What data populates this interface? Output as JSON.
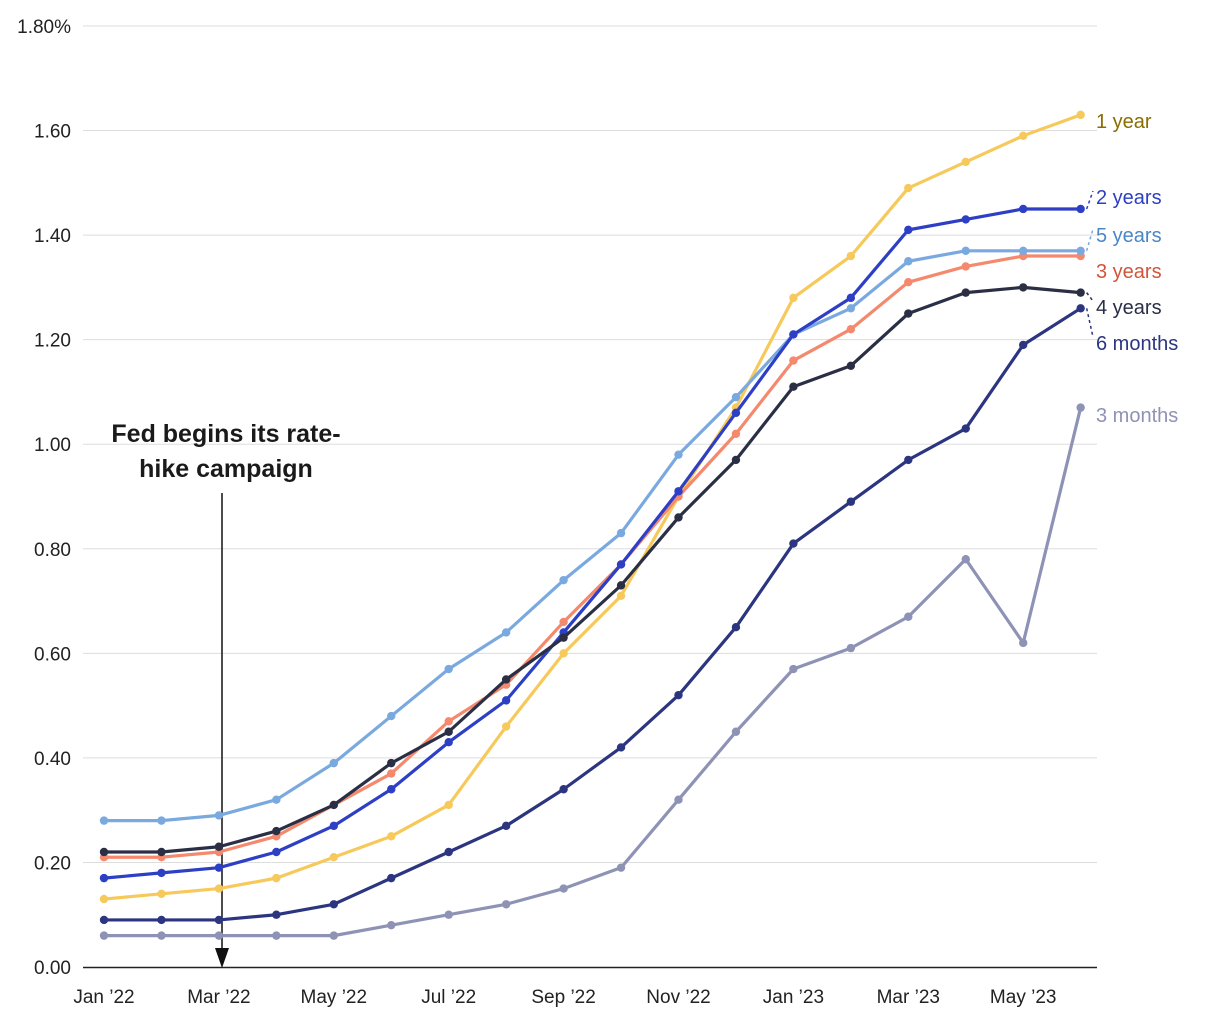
{
  "chart_data": {
    "type": "line",
    "title": "",
    "xlabel": "",
    "ylabel": "",
    "ylim": [
      0,
      1.8
    ],
    "y_ticks": [
      "0.00",
      "0.20",
      "0.40",
      "0.60",
      "0.80",
      "1.00",
      "1.20",
      "1.40",
      "1.60",
      "1.80%"
    ],
    "x_tick_labels": [
      "Jan ’22",
      "Mar ’22",
      "May ’22",
      "Jul ’22",
      "Sep ’22",
      "Nov ’22",
      "Jan ’23",
      "Mar ’23",
      "May ’23"
    ],
    "x": [
      "2022-01",
      "2022-02",
      "2022-03",
      "2022-04",
      "2022-05",
      "2022-06",
      "2022-07",
      "2022-08",
      "2022-09",
      "2022-10",
      "2022-11",
      "2022-12",
      "2023-01",
      "2023-02",
      "2023-03",
      "2023-04",
      "2023-05",
      "2023-06"
    ],
    "grid": true,
    "legend": "direct labels at right end of lines",
    "series": [
      {
        "name": "3 months",
        "color": "#8e92b5",
        "values": [
          0.06,
          0.06,
          0.06,
          0.06,
          0.06,
          0.08,
          0.1,
          0.12,
          0.15,
          0.19,
          0.32,
          0.45,
          0.57,
          0.61,
          0.67,
          0.78,
          0.62,
          1.07
        ]
      },
      {
        "name": "6 months",
        "color": "#2c3580",
        "values": [
          0.09,
          0.09,
          0.09,
          0.1,
          0.12,
          0.17,
          0.22,
          0.27,
          0.34,
          0.42,
          0.52,
          0.65,
          0.81,
          0.89,
          0.97,
          1.03,
          1.19,
          1.26
        ]
      },
      {
        "name": "1 year",
        "color": "#f7c95b",
        "label_color": "#8a6d00",
        "values": [
          0.13,
          0.14,
          0.15,
          0.17,
          0.21,
          0.25,
          0.31,
          0.46,
          0.6,
          0.71,
          0.9,
          1.07,
          1.28,
          1.36,
          1.49,
          1.54,
          1.59,
          1.63
        ]
      },
      {
        "name": "3 years",
        "color": "#f4896d",
        "label_color": "#d2543a",
        "values": [
          0.21,
          0.21,
          0.22,
          0.25,
          0.31,
          0.37,
          0.47,
          0.54,
          0.66,
          0.77,
          0.9,
          1.02,
          1.16,
          1.22,
          1.31,
          1.34,
          1.36,
          1.36
        ]
      },
      {
        "name": "5 years",
        "color": "#7aa9e0",
        "label_color": "#4a86c8",
        "values": [
          0.28,
          0.28,
          0.29,
          0.32,
          0.39,
          0.48,
          0.57,
          0.64,
          0.74,
          0.83,
          0.98,
          1.09,
          1.21,
          1.26,
          1.35,
          1.37,
          1.37,
          1.37
        ]
      },
      {
        "name": "2 years",
        "color": "#2d3fc4",
        "values": [
          0.17,
          0.18,
          0.19,
          0.22,
          0.27,
          0.34,
          0.43,
          0.51,
          0.64,
          0.77,
          0.91,
          1.06,
          1.21,
          1.28,
          1.41,
          1.43,
          1.45,
          1.45
        ]
      },
      {
        "name": "4 years",
        "color": "#2a2f45",
        "values": [
          0.22,
          0.22,
          0.23,
          0.26,
          0.31,
          0.39,
          0.45,
          0.55,
          0.63,
          0.73,
          0.86,
          0.97,
          1.11,
          1.15,
          1.25,
          1.29,
          1.3,
          1.29
        ]
      }
    ],
    "annotation": {
      "lines": [
        "Fed begins its rate-",
        "hike campaign"
      ],
      "x": "2022-03"
    }
  }
}
